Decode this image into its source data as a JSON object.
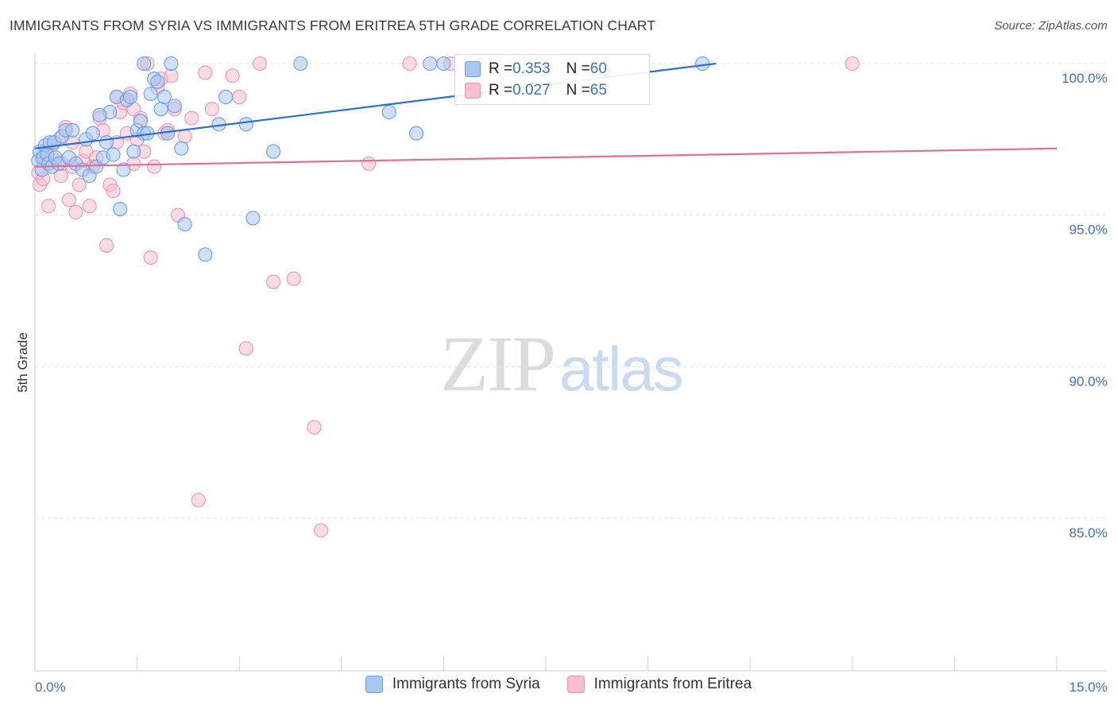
{
  "title": "IMMIGRANTS FROM SYRIA VS IMMIGRANTS FROM ERITREA 5TH GRADE CORRELATION CHART",
  "source": "Source: ZipAtlas.com",
  "watermark": {
    "zip": "ZIP",
    "atlas": "atlas"
  },
  "legend": {
    "rows": [
      {
        "r_label": "R = ",
        "r_value": "0.353",
        "n_label": "N = ",
        "n_value": "60"
      },
      {
        "r_label": "R = ",
        "r_value": "0.027",
        "n_label": "N = ",
        "n_value": "65"
      }
    ]
  },
  "chart_data": {
    "type": "scatter",
    "title": "IMMIGRANTS FROM SYRIA VS IMMIGRANTS FROM ERITREA 5TH GRADE CORRELATION CHART",
    "xlabel": "",
    "ylabel": "5th Grade",
    "xlim": [
      0,
      15
    ],
    "ylim": [
      80.5,
      100.45
    ],
    "x_tick_labels": [
      "0.0%",
      "15.0%"
    ],
    "y_ticks": [
      85,
      90,
      95,
      100
    ],
    "y_tick_labels": [
      "85.0%",
      "90.0%",
      "95.0%",
      "100.0%"
    ],
    "grid": "horizontal dashed",
    "legend_position": "top-center",
    "colors": {
      "syria_fill": "#a9c8f1",
      "syria_stroke": "#6b9ee0",
      "syria_line": "#2a6fd1",
      "eritrea_fill": "#f7bfd0",
      "eritrea_stroke": "#ec95b3",
      "eritrea_line": "#e0709a",
      "accent_text": "#3f6fc4"
    },
    "series": [
      {
        "name": "Immigrants from Syria",
        "R": 0.353,
        "N": 60,
        "trend": {
          "x": [
            0,
            10.0
          ],
          "y": [
            97.2,
            100.0
          ]
        },
        "points": [
          [
            0.05,
            96.8
          ],
          [
            0.07,
            97.1
          ],
          [
            0.1,
            96.5
          ],
          [
            0.12,
            96.9
          ],
          [
            0.15,
            97.3
          ],
          [
            0.18,
            97.0
          ],
          [
            0.2,
            96.7
          ],
          [
            0.22,
            97.4
          ],
          [
            0.25,
            96.6
          ],
          [
            0.28,
            97.4
          ],
          [
            0.3,
            96.9
          ],
          [
            0.35,
            96.7
          ],
          [
            0.4,
            97.6
          ],
          [
            0.45,
            97.8
          ],
          [
            0.5,
            96.9
          ],
          [
            0.55,
            97.8
          ],
          [
            0.6,
            96.7
          ],
          [
            0.7,
            96.5
          ],
          [
            0.75,
            97.5
          ],
          [
            0.8,
            96.3
          ],
          [
            0.85,
            97.7
          ],
          [
            0.9,
            96.6
          ],
          [
            1.0,
            96.9
          ],
          [
            1.05,
            97.4
          ],
          [
            1.1,
            98.4
          ],
          [
            1.15,
            97.0
          ],
          [
            1.2,
            98.9
          ],
          [
            1.25,
            95.2
          ],
          [
            1.3,
            96.5
          ],
          [
            1.35,
            98.8
          ],
          [
            1.4,
            98.9
          ],
          [
            1.5,
            97.8
          ],
          [
            1.55,
            98.1
          ],
          [
            1.6,
            97.7
          ],
          [
            1.65,
            97.7
          ],
          [
            1.7,
            99.0
          ],
          [
            1.75,
            99.5
          ],
          [
            1.8,
            99.4
          ],
          [
            1.85,
            98.5
          ],
          [
            1.9,
            98.9
          ],
          [
            1.95,
            97.7
          ],
          [
            2.0,
            100.0
          ],
          [
            2.05,
            98.6
          ],
          [
            2.15,
            97.2
          ],
          [
            2.2,
            94.7
          ],
          [
            2.5,
            93.7
          ],
          [
            2.7,
            98.0
          ],
          [
            2.8,
            98.9
          ],
          [
            3.1,
            98.0
          ],
          [
            3.2,
            94.9
          ],
          [
            3.5,
            97.1
          ],
          [
            1.6,
            100.0
          ],
          [
            3.9,
            100.0
          ],
          [
            5.2,
            98.4
          ],
          [
            5.6,
            97.7
          ],
          [
            5.8,
            100.0
          ],
          [
            6.0,
            100.0
          ],
          [
            9.8,
            100.0
          ],
          [
            0.95,
            98.3
          ],
          [
            1.45,
            97.1
          ]
        ]
      },
      {
        "name": "Immigrants from Eritrea",
        "R": 0.027,
        "N": 65,
        "trend": {
          "x": [
            0,
            15.0
          ],
          "y": [
            96.6,
            97.2
          ]
        },
        "points": [
          [
            0.05,
            96.4
          ],
          [
            0.07,
            96.0
          ],
          [
            0.1,
            96.9
          ],
          [
            0.12,
            96.2
          ],
          [
            0.15,
            97.1
          ],
          [
            0.2,
            95.3
          ],
          [
            0.25,
            97.3
          ],
          [
            0.3,
            96.8
          ],
          [
            0.35,
            97.5
          ],
          [
            0.38,
            96.3
          ],
          [
            0.4,
            96.7
          ],
          [
            0.45,
            97.9
          ],
          [
            0.5,
            95.5
          ],
          [
            0.55,
            96.6
          ],
          [
            0.6,
            95.1
          ],
          [
            0.65,
            96.0
          ],
          [
            0.7,
            96.8
          ],
          [
            0.75,
            97.1
          ],
          [
            0.8,
            95.3
          ],
          [
            0.85,
            96.6
          ],
          [
            0.9,
            96.9
          ],
          [
            0.95,
            98.2
          ],
          [
            1.0,
            97.8
          ],
          [
            1.05,
            94.0
          ],
          [
            1.1,
            96.0
          ],
          [
            1.15,
            95.8
          ],
          [
            1.2,
            97.4
          ],
          [
            1.25,
            98.4
          ],
          [
            1.3,
            98.7
          ],
          [
            1.35,
            97.7
          ],
          [
            1.4,
            99.0
          ],
          [
            1.45,
            96.7
          ],
          [
            1.5,
            97.5
          ],
          [
            1.55,
            98.2
          ],
          [
            1.6,
            97.1
          ],
          [
            1.65,
            100.0
          ],
          [
            1.7,
            93.6
          ],
          [
            1.75,
            96.6
          ],
          [
            1.8,
            99.2
          ],
          [
            1.85,
            99.5
          ],
          [
            1.9,
            97.7
          ],
          [
            1.95,
            97.8
          ],
          [
            2.0,
            99.6
          ],
          [
            2.05,
            98.5
          ],
          [
            2.1,
            95.0
          ],
          [
            2.2,
            97.6
          ],
          [
            2.3,
            98.2
          ],
          [
            2.4,
            85.6
          ],
          [
            2.5,
            99.7
          ],
          [
            2.6,
            98.5
          ],
          [
            2.9,
            99.6
          ],
          [
            3.0,
            98.9
          ],
          [
            3.1,
            90.6
          ],
          [
            3.3,
            100.0
          ],
          [
            3.5,
            92.8
          ],
          [
            3.8,
            92.9
          ],
          [
            4.1,
            88.0
          ],
          [
            4.2,
            84.6
          ],
          [
            4.9,
            96.7
          ],
          [
            5.5,
            100.0
          ],
          [
            6.1,
            100.0
          ],
          [
            12.0,
            100.0
          ],
          [
            1.2,
            98.9
          ],
          [
            1.45,
            98.5
          ],
          [
            0.55,
            97.4
          ]
        ]
      }
    ]
  }
}
